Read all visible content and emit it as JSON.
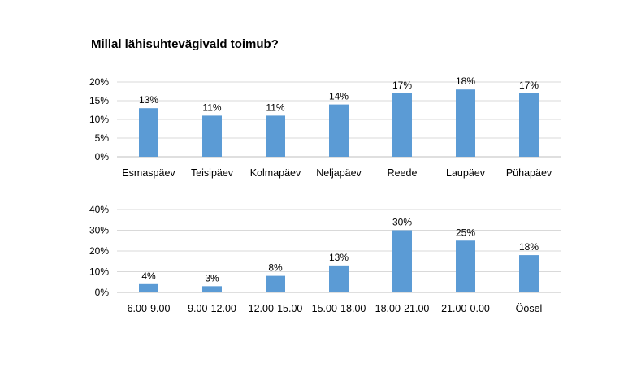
{
  "title": "Millal lähisuhtevägivald toimub?",
  "colors": {
    "bar": "#5b9bd5",
    "grid": "#d9d9d9",
    "axis": "#bfbfbf"
  },
  "chart_data": [
    {
      "type": "bar",
      "categories": [
        "Esmaspäev",
        "Teisipäev",
        "Kolmapäev",
        "Neljapäev",
        "Reede",
        "Laupäev",
        "Pühapäev"
      ],
      "values": [
        13,
        11,
        11,
        14,
        17,
        18,
        17
      ],
      "data_labels": [
        "13%",
        "11%",
        "11%",
        "14%",
        "17%",
        "18%",
        "17%"
      ],
      "yticks": [
        "0%",
        "5%",
        "10%",
        "15%",
        "20%"
      ],
      "ylim": [
        0,
        20
      ],
      "grid": true,
      "legend": "none"
    },
    {
      "type": "bar",
      "categories": [
        "6.00-9.00",
        "9.00-12.00",
        "12.00-15.00",
        "15.00-18.00",
        "18.00-21.00",
        "21.00-0.00",
        "Öösel"
      ],
      "values": [
        4,
        3,
        8,
        13,
        30,
        25,
        18
      ],
      "data_labels": [
        "4%",
        "3%",
        "8%",
        "13%",
        "30%",
        "25%",
        "18%"
      ],
      "yticks": [
        "0%",
        "10%",
        "20%",
        "30%",
        "40%"
      ],
      "ylim": [
        0,
        40
      ],
      "grid": true,
      "legend": "none"
    }
  ]
}
